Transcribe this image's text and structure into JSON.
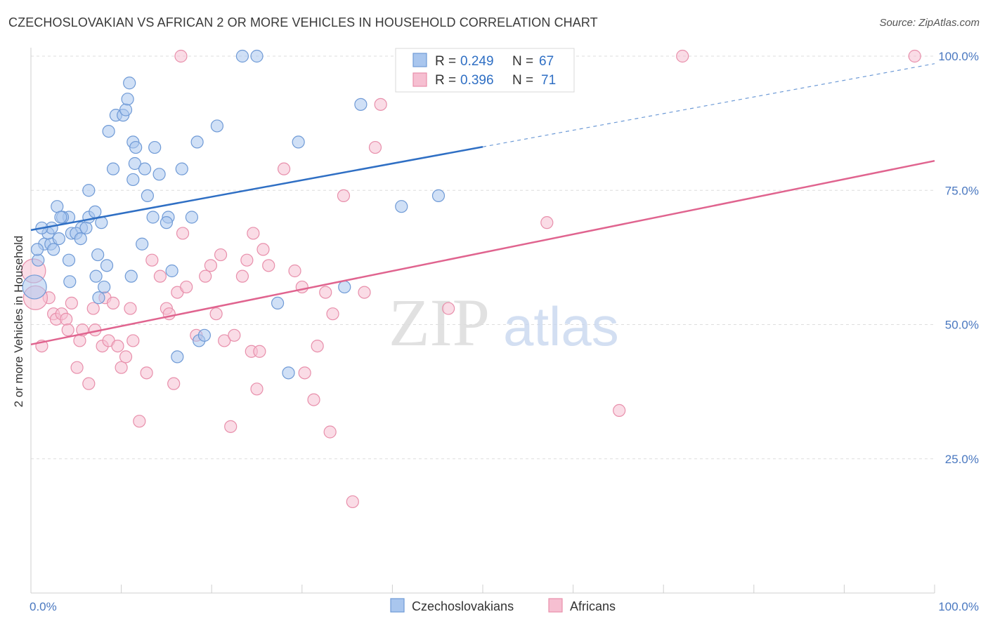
{
  "title": "CZECHOSLOVAKIAN VS AFRICAN 2 OR MORE VEHICLES IN HOUSEHOLD CORRELATION CHART",
  "source": "Source: ZipAtlas.com",
  "watermark": {
    "zip": "ZIP",
    "atlas": "atlas"
  },
  "colors": {
    "blue_fill": "#a9c6ee",
    "blue_stroke": "#6f9ad6",
    "blue_line": "#2f6fc4",
    "pink_fill": "#f6bfd1",
    "pink_stroke": "#e88fab",
    "pink_line": "#e0648f",
    "grid": "#dddddd",
    "tick_text": "#4a78c0"
  },
  "legend": {
    "rows": [
      {
        "r_label": "R =",
        "r_value": "0.249",
        "n_label": "N =",
        "n_value": "67"
      },
      {
        "r_label": "R =",
        "r_value": "0.396",
        "n_label": "N =",
        "n_value": "71"
      }
    ]
  },
  "bottom_legend": [
    "Czechoslovakians",
    "Africans"
  ],
  "chart_data": {
    "type": "scatter",
    "title": "CZECHOSLOVAKIAN VS AFRICAN 2 OR MORE VEHICLES IN HOUSEHOLD CORRELATION CHART",
    "xlabel": "",
    "ylabel": "2 or more Vehicles in Household",
    "xlim": [
      0,
      100
    ],
    "ylim": [
      0,
      100
    ],
    "x_tick_labels": [
      "0.0%",
      "100.0%"
    ],
    "y_tick_labels": [
      "25.0%",
      "50.0%",
      "75.0%",
      "100.0%"
    ],
    "y_ticks": [
      25,
      50,
      75,
      100
    ],
    "grid": true,
    "legend_position": "top-center",
    "series": [
      {
        "name": "Czechoslovakians",
        "r": 0.249,
        "n": 67,
        "trend": {
          "x0": 0,
          "y0": 67.6,
          "x1": 100,
          "y1": 98.6,
          "solid_until_x": 50
        },
        "points": [
          [
            1.5,
            65
          ],
          [
            2.2,
            65
          ],
          [
            1.9,
            67
          ],
          [
            2.5,
            64
          ],
          [
            0.8,
            62
          ],
          [
            2.9,
            72
          ],
          [
            2.3,
            68
          ],
          [
            4.2,
            70
          ],
          [
            3.5,
            70
          ],
          [
            3.1,
            66
          ],
          [
            3.3,
            70
          ],
          [
            5.6,
            68
          ],
          [
            4.5,
            67
          ],
          [
            5.0,
            67
          ],
          [
            4.2,
            62
          ],
          [
            6.1,
            68
          ],
          [
            5.5,
            66
          ],
          [
            6.4,
            70
          ],
          [
            4.3,
            58
          ],
          [
            6.4,
            75
          ],
          [
            7.1,
            71
          ],
          [
            7.4,
            63
          ],
          [
            7.2,
            59
          ],
          [
            7.5,
            55
          ],
          [
            8.1,
            57
          ],
          [
            8.4,
            61
          ],
          [
            7.8,
            69
          ],
          [
            9.1,
            79
          ],
          [
            8.6,
            86
          ],
          [
            9.4,
            89
          ],
          [
            10.2,
            89
          ],
          [
            10.5,
            90
          ],
          [
            10.7,
            92
          ],
          [
            10.9,
            95
          ],
          [
            11.3,
            84
          ],
          [
            11.6,
            83
          ],
          [
            11.3,
            77
          ],
          [
            11.5,
            80
          ],
          [
            11.1,
            59
          ],
          [
            12.6,
            79
          ],
          [
            13.7,
            83
          ],
          [
            12.3,
            65
          ],
          [
            12.9,
            74
          ],
          [
            13.5,
            70
          ],
          [
            14.2,
            78
          ],
          [
            15.2,
            70
          ],
          [
            15.0,
            69
          ],
          [
            15.6,
            60
          ],
          [
            16.2,
            44
          ],
          [
            16.7,
            79
          ],
          [
            18.4,
            84
          ],
          [
            18.6,
            47
          ],
          [
            17.8,
            70
          ],
          [
            19.2,
            48
          ],
          [
            20.6,
            87
          ],
          [
            23.4,
            100
          ],
          [
            25.0,
            100
          ],
          [
            27.3,
            54
          ],
          [
            28.5,
            41
          ],
          [
            29.6,
            84
          ],
          [
            34.7,
            57
          ],
          [
            36.5,
            91
          ],
          [
            41.0,
            72
          ],
          [
            45.1,
            74
          ],
          [
            0.4,
            57
          ],
          [
            0.7,
            64
          ],
          [
            1.2,
            68
          ]
        ]
      },
      {
        "name": "Africans",
        "r": 0.396,
        "n": 71,
        "trend": {
          "x0": 0,
          "y0": 46.3,
          "x1": 100,
          "y1": 80.5
        },
        "points": [
          [
            0.3,
            60
          ],
          [
            1.2,
            46
          ],
          [
            2.0,
            55
          ],
          [
            2.5,
            52
          ],
          [
            2.8,
            51
          ],
          [
            3.4,
            52
          ],
          [
            3.9,
            51
          ],
          [
            4.1,
            49
          ],
          [
            4.5,
            54
          ],
          [
            5.1,
            42
          ],
          [
            5.4,
            47
          ],
          [
            5.7,
            49
          ],
          [
            6.4,
            39
          ],
          [
            6.9,
            53
          ],
          [
            7.1,
            49
          ],
          [
            7.9,
            46
          ],
          [
            8.2,
            55
          ],
          [
            8.6,
            47
          ],
          [
            9.1,
            54
          ],
          [
            9.6,
            46
          ],
          [
            10.0,
            42
          ],
          [
            10.5,
            44
          ],
          [
            11.0,
            53
          ],
          [
            11.3,
            47
          ],
          [
            12.0,
            32
          ],
          [
            12.8,
            41
          ],
          [
            13.4,
            62
          ],
          [
            14.3,
            59
          ],
          [
            15.0,
            53
          ],
          [
            15.3,
            52
          ],
          [
            15.8,
            39
          ],
          [
            16.2,
            56
          ],
          [
            16.8,
            67
          ],
          [
            17.2,
            57
          ],
          [
            18.3,
            48
          ],
          [
            19.3,
            59
          ],
          [
            19.9,
            61
          ],
          [
            20.5,
            52
          ],
          [
            21.0,
            63
          ],
          [
            21.4,
            47
          ],
          [
            22.1,
            31
          ],
          [
            22.5,
            48
          ],
          [
            23.4,
            59
          ],
          [
            23.9,
            62
          ],
          [
            24.4,
            45
          ],
          [
            24.6,
            67
          ],
          [
            25.0,
            38
          ],
          [
            25.3,
            45
          ],
          [
            25.7,
            64
          ],
          [
            26.3,
            61
          ],
          [
            28.0,
            79
          ],
          [
            29.2,
            60
          ],
          [
            30.0,
            57
          ],
          [
            30.3,
            41
          ],
          [
            31.3,
            36
          ],
          [
            31.7,
            46
          ],
          [
            32.6,
            56
          ],
          [
            33.1,
            30
          ],
          [
            33.4,
            52
          ],
          [
            34.6,
            74
          ],
          [
            35.6,
            17
          ],
          [
            36.9,
            56
          ],
          [
            38.1,
            83
          ],
          [
            38.7,
            91
          ],
          [
            46.2,
            53
          ],
          [
            57.1,
            69
          ],
          [
            65.1,
            34
          ],
          [
            72.1,
            100
          ],
          [
            16.6,
            100
          ],
          [
            97.8,
            100
          ],
          [
            0.5,
            55
          ]
        ]
      }
    ]
  }
}
